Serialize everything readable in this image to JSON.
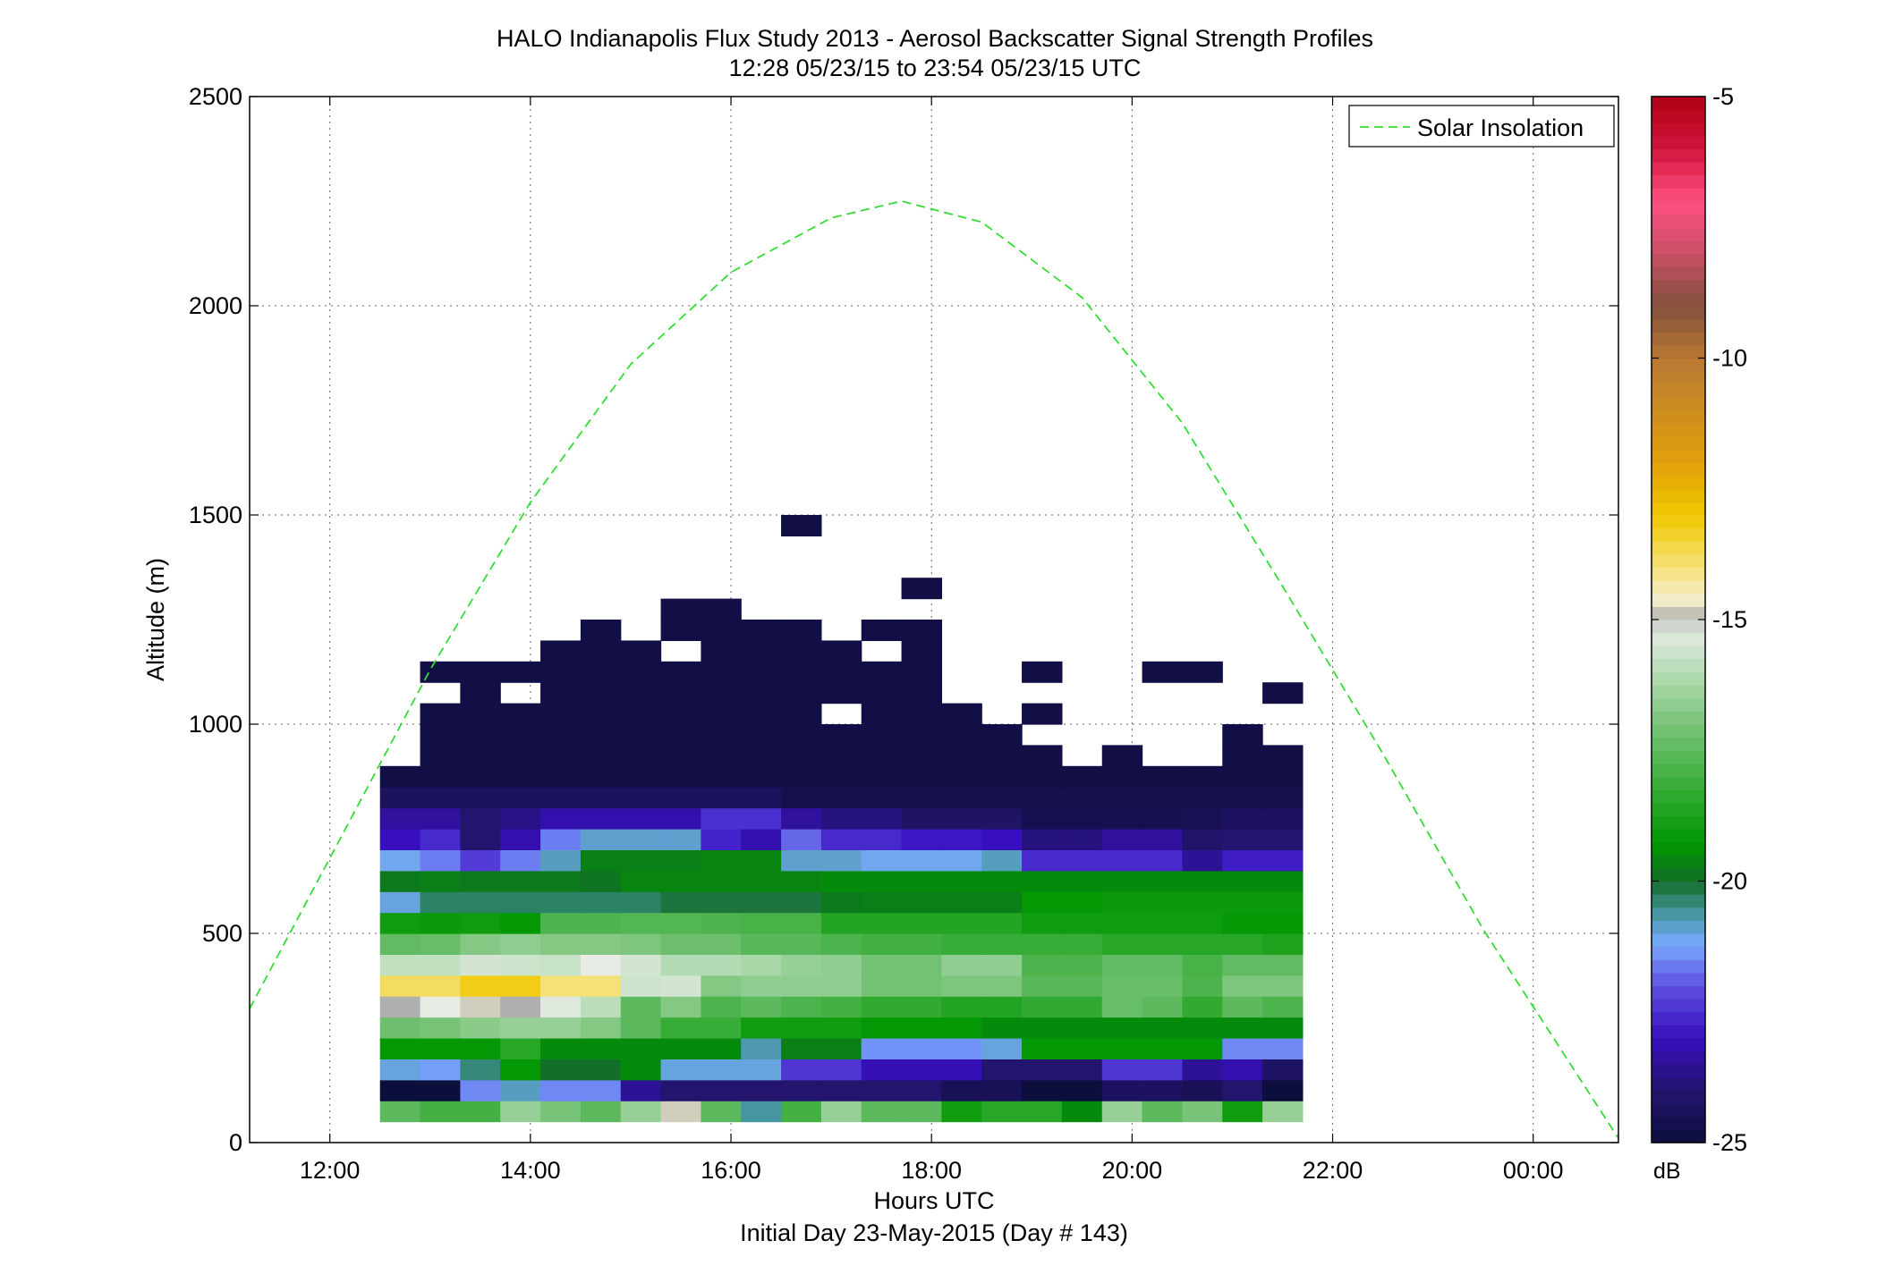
{
  "chart_data": {
    "type": "heatmap",
    "title": "HALO Indianapolis Flux Study 2013 - Aerosol Backscatter Signal Strength Profiles",
    "subtitle": "12:28 05/23/15 to 23:54 05/23/15  UTC",
    "xlabel": "Hours UTC",
    "xlabel2": "Initial Day 23-May-2015 (Day # 143)",
    "ylabel": "Altitude (m)",
    "xlim": [
      11.2,
      24.85
    ],
    "ylim": [
      0,
      2500
    ],
    "grid": true,
    "x_ticks": [
      {
        "value": 12,
        "label": "12:00"
      },
      {
        "value": 14,
        "label": "14:00"
      },
      {
        "value": 16,
        "label": "16:00"
      },
      {
        "value": 18,
        "label": "18:00"
      },
      {
        "value": 20,
        "label": "20:00"
      },
      {
        "value": 22,
        "label": "22:00"
      },
      {
        "value": 24,
        "label": "00:00"
      }
    ],
    "y_ticks": [
      {
        "value": 0,
        "label": "0"
      },
      {
        "value": 500,
        "label": "500"
      },
      {
        "value": 1000,
        "label": "1000"
      },
      {
        "value": 1500,
        "label": "1500"
      },
      {
        "value": 2000,
        "label": "2000"
      },
      {
        "value": 2500,
        "label": "2500"
      }
    ],
    "legend": {
      "label": "Solar Insolation",
      "placement": "top-right",
      "line_color": "#33dd33"
    },
    "colorbar": {
      "unit": "dB",
      "range": [
        -25,
        -5
      ],
      "ticks": [
        {
          "value": -5,
          "label": "-5"
        },
        {
          "value": -10,
          "label": "-10"
        },
        {
          "value": -15,
          "label": "-15"
        },
        {
          "value": -20,
          "label": "-20"
        },
        {
          "value": -25,
          "label": "-25"
        }
      ]
    },
    "heatmap": {
      "time_start": 12.5,
      "time_step": 0.4,
      "alt_start": 50,
      "alt_step": 50,
      "rows": [
        [
          -17.5,
          -18,
          -18,
          -16.5,
          -17,
          -17.5,
          -16.5,
          -14.8,
          -17.5,
          -20.6,
          -18,
          -16.5,
          -17.5,
          -17.5,
          -19,
          -18.5,
          -18.5,
          -19.5,
          -16.5,
          -17.5,
          -17,
          -19,
          -16.5
        ],
        [
          -25,
          -25,
          -21.5,
          -20.8,
          -21.5,
          -21.5,
          -23.5,
          -24,
          -24,
          -24,
          -24,
          -24,
          -24,
          -24,
          -24.5,
          -24.5,
          -25,
          -25,
          -24.3,
          -24.3,
          -24.5,
          -24,
          -25
        ],
        [
          -21,
          -21.3,
          -20.4,
          -19.2,
          -20,
          -20,
          -19.5,
          -21,
          -21,
          -21,
          -22.4,
          -22.4,
          -23.1,
          -23.1,
          -23.1,
          -24,
          -24,
          -24,
          -22.4,
          -22.4,
          -23.5,
          -23.2,
          -24.2
        ],
        [
          -19.2,
          -19.2,
          -19.2,
          -18.5,
          -19.5,
          -19.5,
          -19.5,
          -19.5,
          -19.5,
          -20.7,
          -19.7,
          -19.7,
          -21.4,
          -21.4,
          -21.4,
          -21,
          -19.2,
          -19.2,
          -19.2,
          -19.2,
          -19.2,
          -21.5,
          -21.5
        ],
        [
          -17.2,
          -17,
          -16.7,
          -16.5,
          -16.5,
          -16.8,
          -17.5,
          -18.2,
          -18.2,
          -19,
          -19,
          -19,
          -19.2,
          -19.2,
          -19.2,
          -19.5,
          -19.5,
          -19.5,
          -19.5,
          -19.5,
          -19.5,
          -19.5,
          -19.5
        ],
        [
          -15,
          -15.2,
          -14.8,
          -15,
          -15.3,
          -15.9,
          -17.5,
          -16.8,
          -17.8,
          -17.5,
          -17.8,
          -18,
          -18.3,
          -18.3,
          -18.6,
          -18.6,
          -18.3,
          -18.3,
          -17.3,
          -17.5,
          -18.3,
          -17.5,
          -17.8
        ],
        [
          -13.8,
          -13.8,
          -13.2,
          -13.2,
          -14,
          -14,
          -15.6,
          -15.5,
          -16.8,
          -16.6,
          -16.6,
          -16.6,
          -17.1,
          -17.1,
          -16.9,
          -16.9,
          -17.6,
          -17.6,
          -17.3,
          -17.3,
          -17.8,
          -16.9,
          -16.9
        ],
        [
          -15.8,
          -15.8,
          -15.5,
          -15.6,
          -15.7,
          -15.2,
          -15.5,
          -16,
          -16,
          -16.2,
          -16.5,
          -16.6,
          -17.1,
          -17.1,
          -16.6,
          -16.6,
          -17.8,
          -17.8,
          -17.4,
          -17.4,
          -17.9,
          -17.4,
          -17.4
        ],
        [
          -17.4,
          -17.3,
          -16.8,
          -16.6,
          -16.8,
          -16.8,
          -16.9,
          -17.2,
          -17.2,
          -17.6,
          -17.6,
          -17.8,
          -18,
          -18,
          -18.2,
          -18.2,
          -18.2,
          -18.2,
          -18.5,
          -18.5,
          -18.5,
          -18.5,
          -18.7
        ],
        [
          -19,
          -19.1,
          -19,
          -19.2,
          -17.8,
          -17.8,
          -17.7,
          -17.7,
          -17.8,
          -17.9,
          -17.9,
          -18.6,
          -18.6,
          -18.6,
          -18.6,
          -18.6,
          -19,
          -19,
          -19,
          -19,
          -19,
          -19.2,
          -19.2
        ],
        [
          -21,
          -20.3,
          -20.3,
          -20.3,
          -20.3,
          -20.3,
          -20.3,
          -20.1,
          -20.1,
          -20.1,
          -20.1,
          -19.8,
          -19.7,
          -19.7,
          -19.7,
          -19.7,
          -19.2,
          -19.2,
          -19.1,
          -19.1,
          -19.1,
          -19.1,
          -19.1
        ],
        [
          -19.8,
          -19.7,
          -19.8,
          -19.8,
          -19.8,
          -19.9,
          -19.6,
          -19.6,
          -19.6,
          -19.6,
          -19.6,
          -19.5,
          -19.5,
          -19.5,
          -19.5,
          -19.5,
          -19.5,
          -19.5,
          -19.5,
          -19.5,
          -19.5,
          -19.5,
          -19.5
        ],
        [
          -21.1,
          -21.6,
          -22.3,
          -21.6,
          -20.8,
          -19.7,
          -19.7,
          -19.7,
          -19.6,
          -19.6,
          -20.9,
          -20.9,
          -21.1,
          -21.1,
          -21.1,
          -20.8,
          -22.6,
          -22.6,
          -22.6,
          -22.6,
          -23.5,
          -22.8,
          -22.8
        ],
        [
          -23,
          -22.6,
          -24,
          -23.2,
          -21.6,
          -20.9,
          -20.9,
          -20.9,
          -22.7,
          -23.2,
          -21.8,
          -22.6,
          -22.6,
          -22.9,
          -22.9,
          -23,
          -23.8,
          -23.8,
          -23.4,
          -23.4,
          -24.1,
          -24,
          -24
        ],
        [
          -23.4,
          -23.4,
          -24,
          -23.7,
          -23.2,
          -23.2,
          -23.2,
          -23.2,
          -22.5,
          -22.5,
          -23.4,
          -23.8,
          -23.8,
          -24.2,
          -24.2,
          -24.2,
          -24.6,
          -24.6,
          -24.6,
          -24.6,
          -24.5,
          -24.3,
          -24.3
        ],
        [
          -24.4,
          -24.4,
          -24.4,
          -24.4,
          -24.4,
          -24.4,
          -24.4,
          -24.4,
          -24.4,
          -24.4,
          -24.7,
          -24.7,
          -24.7,
          -24.7,
          -24.7,
          -24.7,
          -24.7,
          -24.7,
          -24.7,
          -24.7,
          -24.7,
          -24.7,
          -24.7
        ]
      ],
      "upper_mask": {
        "note": "",
        "value": -24.8,
        "columns": [
          {
            "top": 900
          },
          {
            "top": 1150,
            "holes": [
              [
                1050,
                1100
              ]
            ]
          },
          {
            "top": 1150,
            "holes": []
          },
          {
            "top": 1150,
            "holes": [
              [
                1050,
                1100
              ]
            ]
          },
          {
            "top": 1200,
            "holes": []
          },
          {
            "top": 1250,
            "holes": []
          },
          {
            "top": 1200,
            "holes": []
          },
          {
            "top": 1300,
            "holes": [
              [
                1150,
                1200
              ]
            ]
          },
          {
            "top": 1300,
            "holes": []
          },
          {
            "top": 1250,
            "holes": []
          },
          {
            "top": 1250,
            "holes": [],
            "extra": [
              [
                1450,
                1500
              ]
            ]
          },
          {
            "top": 1200,
            "holes": [
              [
                1000,
                1050
              ]
            ]
          },
          {
            "top": 1250,
            "holes": [
              [
                1150,
                1200
              ]
            ]
          },
          {
            "top": 1250,
            "holes": [],
            "extra": [
              [
                1300,
                1350
              ]
            ]
          },
          {
            "top": 1050,
            "holes": []
          },
          {
            "top": 1000,
            "holes": []
          },
          {
            "top": 950,
            "holes": [],
            "extra": [
              [
                1000,
                1050
              ],
              [
                1100,
                1150
              ]
            ]
          },
          {
            "top": 900,
            "holes": []
          },
          {
            "top": 950,
            "holes": []
          },
          {
            "top": 900,
            "holes": [],
            "extra": [
              [
                1100,
                1150
              ]
            ]
          },
          {
            "top": 900,
            "holes": [],
            "extra": [
              [
                1100,
                1150
              ]
            ]
          },
          {
            "top": 1000,
            "holes": []
          },
          {
            "top": 950,
            "holes": [],
            "extra": [
              [
                1050,
                1100
              ]
            ]
          }
        ]
      }
    },
    "insolation_curve": {
      "name": "Solar Insolation",
      "x": [
        11.2,
        12,
        13,
        14,
        15,
        16,
        17,
        17.7,
        18.5,
        19.5,
        20.5,
        21.5,
        22.5,
        23.5,
        24.85
      ],
      "y": [
        320,
        680,
        1130,
        1530,
        1860,
        2080,
        2210,
        2250,
        2200,
        2020,
        1720,
        1330,
        930,
        510,
        10
      ]
    }
  }
}
